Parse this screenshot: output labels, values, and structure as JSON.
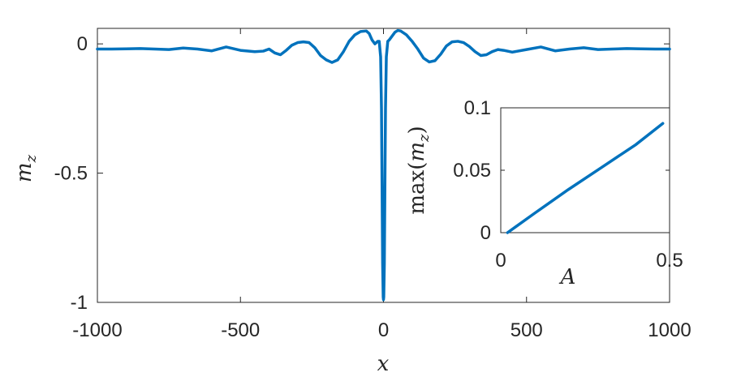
{
  "chart_data": [
    {
      "type": "line",
      "title": "",
      "xlabel": "x",
      "ylabel": "m_z",
      "xlim": [
        -1000,
        1000
      ],
      "ylim": [
        -1,
        0.06
      ],
      "x_ticks": [
        -1000,
        -500,
        0,
        500,
        1000
      ],
      "x_tick_labels": [
        "-1000",
        "-500",
        "0",
        "500",
        "1000"
      ],
      "y_ticks": [
        -1,
        -0.5,
        0
      ],
      "y_tick_labels": [
        "-1",
        "-0.5",
        "0"
      ],
      "grid": false,
      "legend": "none",
      "line_color": "#0072BD",
      "series": [
        {
          "x": [
            -1000,
            -950,
            -900,
            -850,
            -800,
            -750,
            -700,
            -650,
            -600,
            -550,
            -500,
            -450,
            -420,
            -400,
            -380,
            -360,
            -340,
            -320,
            -300,
            -280,
            -260,
            -240,
            -220,
            -200,
            -180,
            -160,
            -140,
            -120,
            -100,
            -80,
            -60,
            -50,
            -40,
            -30,
            -20,
            -15,
            -10,
            -7,
            -5,
            -3,
            -1,
            0,
            1,
            3,
            5,
            7,
            10,
            15,
            20,
            30,
            40,
            50,
            60,
            80,
            100,
            120,
            140,
            160,
            180,
            200,
            220,
            240,
            260,
            280,
            300,
            320,
            340,
            360,
            380,
            400,
            420,
            450,
            500,
            550,
            600,
            650,
            700,
            750,
            800,
            850,
            900,
            950,
            1000
          ],
          "values": [
            -0.02,
            -0.02,
            -0.019,
            -0.018,
            -0.02,
            -0.022,
            -0.016,
            -0.02,
            -0.027,
            -0.012,
            -0.025,
            -0.03,
            -0.028,
            -0.02,
            -0.035,
            -0.042,
            -0.025,
            -0.005,
            0.005,
            0.008,
            0.005,
            -0.015,
            -0.045,
            -0.062,
            -0.072,
            -0.062,
            -0.03,
            0.01,
            0.035,
            0.048,
            0.05,
            0.04,
            0.015,
            0.0,
            0.01,
            0.01,
            -0.05,
            -0.25,
            -0.55,
            -0.85,
            -0.98,
            -0.99,
            -0.98,
            -0.85,
            -0.55,
            -0.25,
            -0.05,
            0.01,
            0.015,
            0.03,
            0.045,
            0.052,
            0.05,
            0.035,
            0.01,
            -0.02,
            -0.055,
            -0.07,
            -0.065,
            -0.04,
            -0.008,
            0.008,
            0.01,
            0.005,
            -0.01,
            -0.03,
            -0.045,
            -0.042,
            -0.03,
            -0.022,
            -0.025,
            -0.032,
            -0.022,
            -0.012,
            -0.027,
            -0.02,
            -0.015,
            -0.022,
            -0.02,
            -0.018,
            -0.019,
            -0.02,
            -0.02
          ]
        }
      ]
    },
    {
      "type": "line",
      "title": "",
      "xlabel": "A",
      "ylabel": "max(m_z)",
      "xlim": [
        0,
        0.5
      ],
      "ylim": [
        0,
        0.1
      ],
      "x_ticks": [
        0,
        0.5
      ],
      "x_tick_labels": [
        "0",
        "0.5"
      ],
      "y_ticks": [
        0,
        0.05,
        0.1
      ],
      "y_tick_labels": [
        "0",
        "0.05",
        "0.1"
      ],
      "grid": false,
      "legend": "none",
      "line_color": "#0072BD",
      "series": [
        {
          "x": [
            0.02,
            0.1,
            0.2,
            0.3,
            0.4,
            0.48
          ],
          "values": [
            0.0,
            0.0155,
            0.0345,
            0.0525,
            0.0705,
            0.0875
          ]
        }
      ]
    }
  ]
}
